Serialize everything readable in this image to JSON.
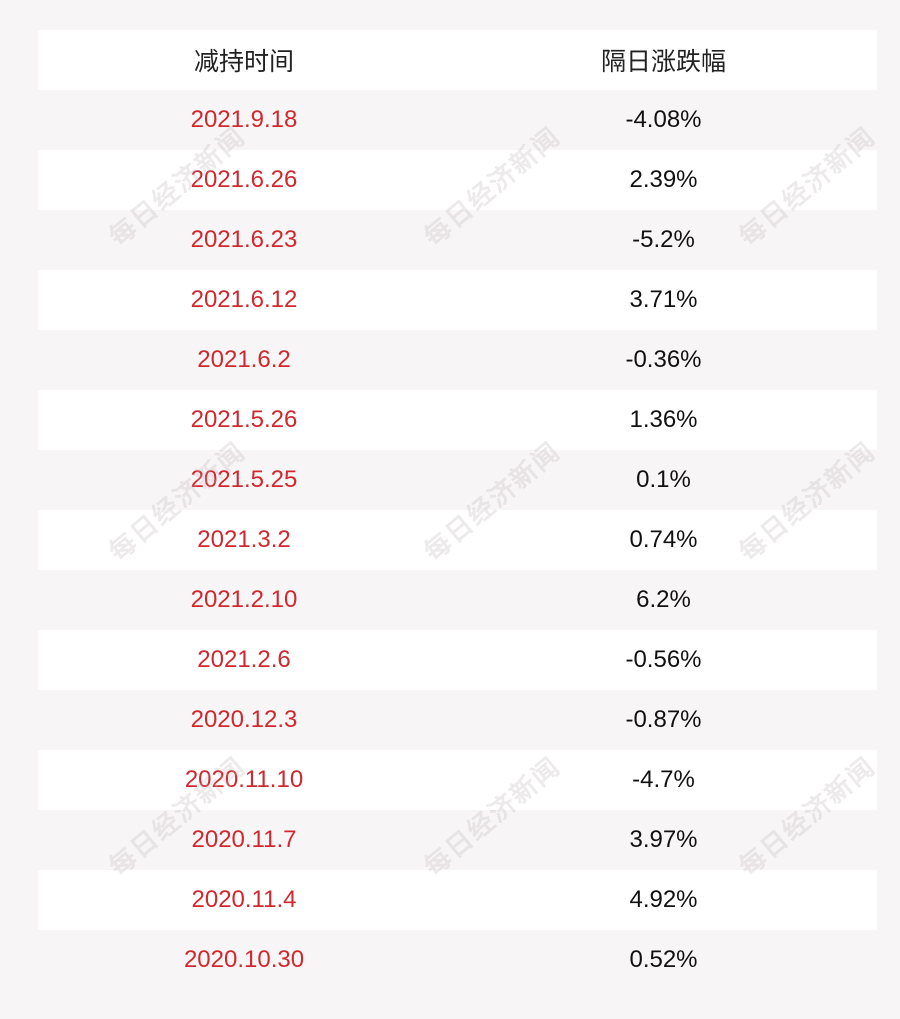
{
  "table": {
    "headers": [
      "减持时间",
      "隔日涨跌幅"
    ],
    "rows": [
      {
        "date": "2021.9.18",
        "change": "-4.08%"
      },
      {
        "date": "2021.6.26",
        "change": "2.39%"
      },
      {
        "date": "2021.6.23",
        "change": "-5.2%"
      },
      {
        "date": "2021.6.12",
        "change": "3.71%"
      },
      {
        "date": "2021.6.2",
        "change": "-0.36%"
      },
      {
        "date": "2021.5.26",
        "change": "1.36%"
      },
      {
        "date": "2021.5.25",
        "change": "0.1%"
      },
      {
        "date": "2021.3.2",
        "change": "0.74%"
      },
      {
        "date": "2021.2.10",
        "change": "6.2%"
      },
      {
        "date": "2021.2.6",
        "change": "-0.56%"
      },
      {
        "date": "2020.12.3",
        "change": "-0.87%"
      },
      {
        "date": "2020.11.10",
        "change": "-4.7%"
      },
      {
        "date": "2020.11.7",
        "change": "3.97%"
      },
      {
        "date": "2020.11.4",
        "change": "4.92%"
      },
      {
        "date": "2020.10.30",
        "change": "0.52%"
      }
    ]
  },
  "watermark": {
    "text": "每日经济新闻"
  },
  "colors": {
    "date_text": "#d0282f",
    "value_text": "#111111",
    "stripe": "#ffffff",
    "background": "#f8f5f6"
  }
}
